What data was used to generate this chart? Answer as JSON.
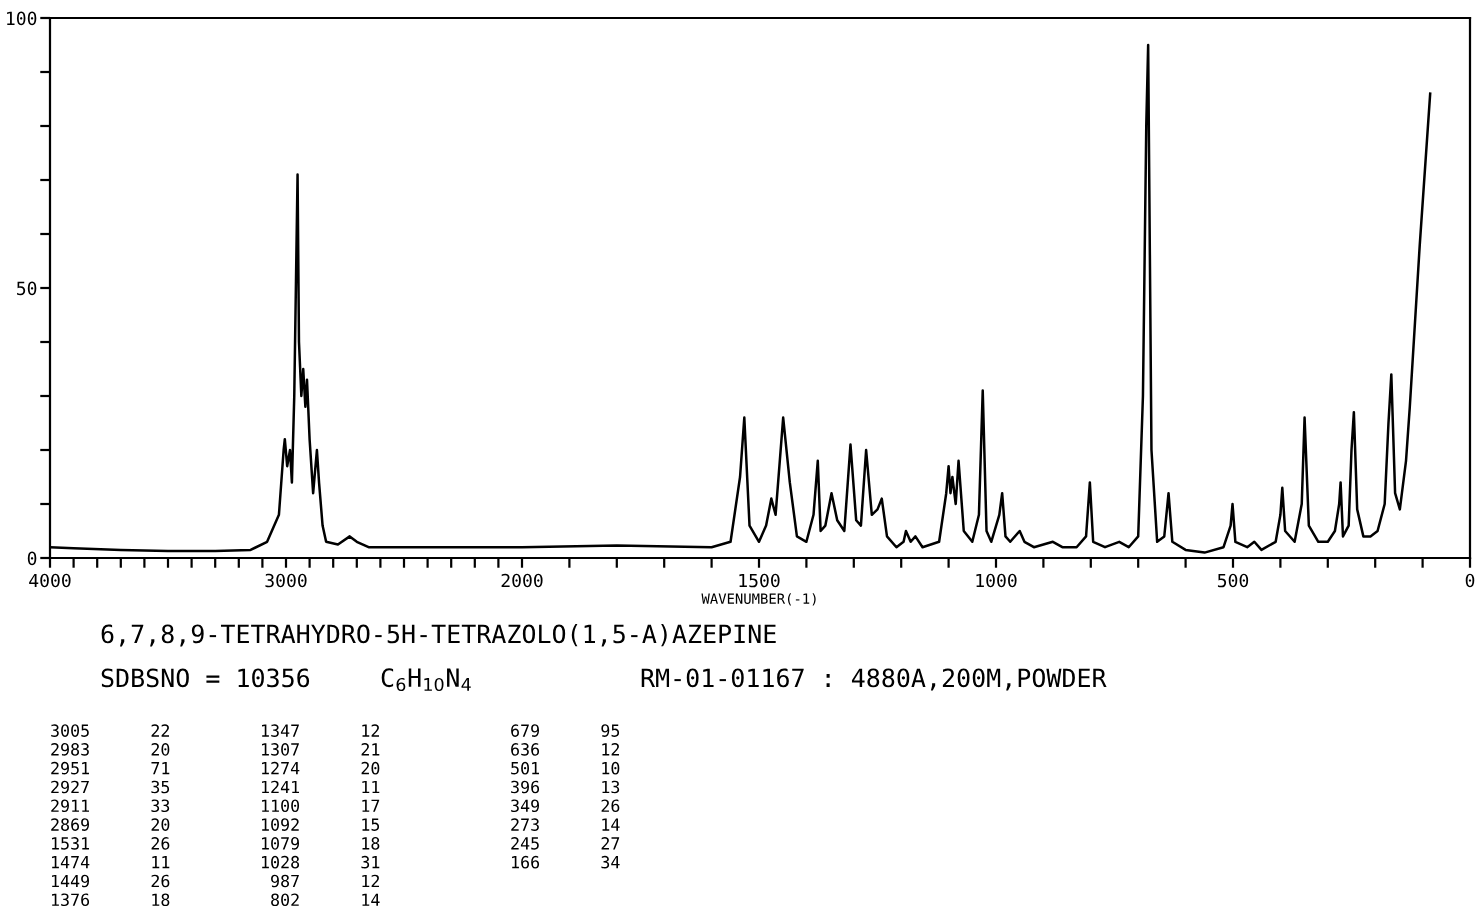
{
  "chart_data": [
    {
      "type": "line",
      "title": "6,7,8,9-TETRAHYDRO-5H-TETRAZOLO(1,5-A)AZEPINE",
      "subtitle": "SDBSNO = 10356",
      "x": [
        4000,
        3900,
        3700,
        3500,
        3300,
        3150,
        3080,
        3030,
        3010,
        3005,
        2995,
        2983,
        2975,
        2965,
        2951,
        2945,
        2935,
        2927,
        2918,
        2911,
        2900,
        2885,
        2869,
        2860,
        2845,
        2830,
        2780,
        2730,
        2700,
        2650,
        2400,
        2200,
        2000
      ],
      "series": [
        {
          "color": "#000000",
          "values": [
            2,
            1.8,
            1.5,
            1.3,
            1.3,
            1.5,
            3,
            8,
            20,
            22,
            17,
            20,
            14,
            30,
            71,
            40,
            30,
            35,
            28,
            33,
            22,
            12,
            20,
            14,
            6,
            3,
            2.5,
            4,
            3,
            2,
            2,
            2,
            2
          ]
        }
      ],
      "xlim": [
        4000,
        2000
      ],
      "ylim": [
        0,
        100
      ],
      "xticks": [
        4000,
        {
          "value": 3900,
          "label": null
        },
        {
          "value": 3800,
          "label": null
        },
        {
          "value": 3700,
          "label": null
        },
        {
          "value": 3600,
          "label": null
        },
        {
          "value": 3500,
          "label": null
        },
        {
          "value": 3400,
          "label": null
        },
        {
          "value": 3300,
          "label": null
        },
        {
          "value": 3200,
          "label": null
        },
        {
          "value": 3100,
          "label": null
        },
        3000,
        {
          "value": 2900,
          "label": null
        },
        {
          "value": 2800,
          "label": null
        },
        {
          "value": 2700,
          "label": null
        },
        {
          "value": 2600,
          "label": null
        },
        {
          "value": 2500,
          "label": null
        },
        {
          "value": 2400,
          "label": null
        },
        {
          "value": 2300,
          "label": null
        },
        {
          "value": 2200,
          "label": null
        },
        {
          "value": 2100,
          "label": null
        }
      ],
      "yticks": [
        0,
        {
          "value": 10,
          "label": null
        },
        {
          "value": 20,
          "label": null
        },
        {
          "value": 30,
          "label": null
        },
        {
          "value": 40,
          "label": null
        },
        50,
        {
          "value": 60,
          "label": null
        },
        {
          "value": 70,
          "label": null
        },
        {
          "value": 80,
          "label": null
        },
        {
          "value": 90,
          "label": null
        },
        100
      ],
      "grid": false,
      "legend": false,
      "marker": "none",
      "line_style": "solid",
      "annotations": [
        "C$_{6}$H$_{10}$N$_{4}$",
        "RM-01-01167 : 4880A,200M,POWDER",
        "3005      22",
        "2983      20",
        "2951      71",
        "2927      35",
        "2911      33",
        "2869      20",
        "1531      26",
        "1474      11",
        "1449      26",
        "1376      18",
        "1347      12",
        "1307      21",
        "1274      20",
        "1241      11",
        "1100      17",
        "1092      15",
        "1079      18",
        "1028      31",
        " 987      12",
        " 802      14",
        " 679      95",
        " 636      12",
        " 501      10",
        " 396      13",
        " 349      26",
        " 273      14",
        " 245      27",
        " 166      34"
      ]
    },
    {
      "type": "line",
      "xlabel": "WAVENUMBER(-1)",
      "x": [
        2000,
        1800,
        1600,
        1560,
        1540,
        1531,
        1520,
        1500,
        1485,
        1474,
        1465,
        1449,
        1435,
        1420,
        1400,
        1385,
        1376,
        1370,
        1360,
        1347,
        1335,
        1320,
        1307,
        1295,
        1285,
        1274,
        1262,
        1250,
        1241,
        1230,
        1210,
        1195,
        1190,
        1180,
        1170,
        1155,
        1120,
        1105,
        1100,
        1096,
        1092,
        1085,
        1079,
        1068,
        1050,
        1036,
        1028,
        1020,
        1010,
        993,
        987,
        980,
        970,
        950,
        940,
        920,
        880,
        860,
        830,
        810,
        802,
        795,
        770,
        740,
        720,
        700,
        690,
        683,
        679,
        672,
        660,
        645,
        636,
        628,
        600,
        560,
        520,
        505,
        501,
        495,
        470,
        455,
        440,
        410,
        400,
        396,
        390,
        370,
        355,
        349,
        340,
        320,
        300,
        285,
        276,
        273,
        268,
        256,
        250,
        245,
        238,
        225,
        210,
        195,
        180,
        172,
        166,
        158,
        148,
        135,
        127,
        106,
        84
      ],
      "series": [
        {
          "color": "#000000",
          "values": [
            2,
            2.3,
            2,
            3,
            15,
            26,
            6,
            3,
            6,
            11,
            8,
            26,
            14,
            4,
            3,
            8,
            18,
            5,
            6,
            12,
            7,
            5,
            21,
            7,
            6,
            20,
            8,
            9,
            11,
            4,
            2,
            3,
            5,
            3,
            4,
            2,
            3,
            12,
            17,
            12,
            15,
            10,
            18,
            5,
            3,
            8,
            31,
            5,
            3,
            8,
            12,
            4,
            3,
            5,
            3,
            2,
            3,
            2,
            2,
            4,
            14,
            3,
            2,
            3,
            2,
            4,
            30,
            80,
            95,
            20,
            3,
            4,
            12,
            3,
            1.5,
            1,
            2,
            6,
            10,
            3,
            2,
            3,
            1.5,
            3,
            8,
            13,
            5,
            3,
            10,
            26,
            6,
            3,
            3,
            5,
            10,
            14,
            4,
            6,
            20,
            27,
            9,
            4,
            4,
            5,
            10,
            25,
            34,
            12,
            9,
            18,
            28,
            58,
            86
          ]
        }
      ],
      "xlim": [
        2000,
        0
      ],
      "ylim": [
        0,
        100
      ],
      "tick_labels": "x",
      "xticks": [
        2000,
        {
          "value": 1900,
          "label": null
        },
        {
          "value": 1800,
          "label": null
        },
        {
          "value": 1700,
          "label": null
        },
        {
          "value": 1600,
          "label": null
        },
        1500,
        {
          "value": 1400,
          "label": null
        },
        {
          "value": 1300,
          "label": null
        },
        {
          "value": 1200,
          "label": null
        },
        {
          "value": 1100,
          "label": null
        },
        1000,
        {
          "value": 900,
          "label": null
        },
        {
          "value": 800,
          "label": null
        },
        {
          "value": 700,
          "label": null
        },
        {
          "value": 600,
          "label": null
        },
        500,
        {
          "value": 400,
          "label": null
        },
        {
          "value": 300,
          "label": null
        },
        {
          "value": 200,
          "label": null
        },
        {
          "value": 100,
          "label": null
        },
        0
      ],
      "grid": false,
      "legend": false,
      "marker": "none",
      "line_style": "solid"
    }
  ]
}
